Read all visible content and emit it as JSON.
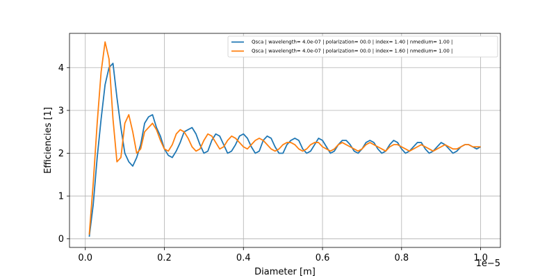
{
  "chart_data": {
    "type": "line",
    "title": "",
    "xlabel": "Diameter [m]",
    "ylabel": "Efficiencies [1]",
    "x_offset_label": "1e−5",
    "xlim": [
      -0.04,
      1.05
    ],
    "ylim": [
      -0.2,
      4.8
    ],
    "grid": true,
    "legend_position": "top-right",
    "xticks": [
      0.0,
      0.2,
      0.4,
      0.6,
      0.8,
      1.0
    ],
    "xtick_labels": [
      "0.0",
      "0.2",
      "0.4",
      "0.6",
      "0.8",
      "1.0"
    ],
    "yticks": [
      0,
      1,
      2,
      3,
      4
    ],
    "ytick_labels": [
      "0",
      "1",
      "2",
      "3",
      "4"
    ],
    "series": [
      {
        "name": "Qsca | wavelength= 4.0e-07 | polarization= 00.0 | index= 1.40 | nmedium= 1.00 |",
        "color": "#1f77b4",
        "x": [
          0.01,
          0.02,
          0.03,
          0.04,
          0.05,
          0.06,
          0.07,
          0.08,
          0.09,
          0.1,
          0.11,
          0.12,
          0.13,
          0.14,
          0.15,
          0.16,
          0.17,
          0.18,
          0.19,
          0.2,
          0.21,
          0.22,
          0.23,
          0.24,
          0.25,
          0.26,
          0.27,
          0.28,
          0.29,
          0.3,
          0.31,
          0.32,
          0.33,
          0.34,
          0.35,
          0.36,
          0.37,
          0.38,
          0.39,
          0.4,
          0.41,
          0.42,
          0.43,
          0.44,
          0.45,
          0.46,
          0.47,
          0.48,
          0.49,
          0.5,
          0.51,
          0.52,
          0.53,
          0.54,
          0.55,
          0.56,
          0.57,
          0.58,
          0.59,
          0.6,
          0.61,
          0.62,
          0.63,
          0.64,
          0.65,
          0.66,
          0.67,
          0.68,
          0.69,
          0.7,
          0.71,
          0.72,
          0.73,
          0.74,
          0.75,
          0.76,
          0.77,
          0.78,
          0.79,
          0.8,
          0.81,
          0.82,
          0.83,
          0.84,
          0.85,
          0.86,
          0.87,
          0.88,
          0.89,
          0.9,
          0.91,
          0.92,
          0.93,
          0.94,
          0.95,
          0.96,
          0.97,
          0.98,
          0.99,
          1.0
        ],
        "values": [
          0.05,
          0.8,
          1.9,
          2.8,
          3.6,
          4.0,
          4.1,
          3.3,
          2.6,
          2.0,
          1.8,
          1.7,
          1.9,
          2.2,
          2.7,
          2.85,
          2.9,
          2.6,
          2.4,
          2.1,
          1.95,
          1.9,
          2.05,
          2.25,
          2.5,
          2.55,
          2.6,
          2.45,
          2.2,
          2.0,
          2.05,
          2.3,
          2.45,
          2.4,
          2.2,
          2.0,
          2.05,
          2.2,
          2.4,
          2.45,
          2.35,
          2.15,
          2.0,
          2.05,
          2.3,
          2.4,
          2.35,
          2.15,
          2.0,
          2.0,
          2.2,
          2.3,
          2.35,
          2.3,
          2.1,
          2.0,
          2.05,
          2.2,
          2.35,
          2.3,
          2.15,
          2.0,
          2.05,
          2.2,
          2.3,
          2.3,
          2.2,
          2.05,
          2.0,
          2.1,
          2.25,
          2.3,
          2.25,
          2.1,
          2.0,
          2.05,
          2.2,
          2.3,
          2.25,
          2.1,
          2.0,
          2.05,
          2.15,
          2.25,
          2.25,
          2.1,
          2.0,
          2.05,
          2.15,
          2.25,
          2.2,
          2.1,
          2.0,
          2.05,
          2.15,
          2.2,
          2.2,
          2.15,
          2.1,
          2.15
        ]
      },
      {
        "name": "Qsca | wavelength= 4.0e-07 | polarization= 00.0 | index= 1.60 | nmedium= 1.00 |",
        "color": "#ff7f0e",
        "x": [
          0.01,
          0.02,
          0.03,
          0.04,
          0.05,
          0.06,
          0.07,
          0.08,
          0.09,
          0.1,
          0.11,
          0.12,
          0.13,
          0.14,
          0.15,
          0.16,
          0.17,
          0.18,
          0.19,
          0.2,
          0.21,
          0.22,
          0.23,
          0.24,
          0.25,
          0.26,
          0.27,
          0.28,
          0.29,
          0.3,
          0.31,
          0.32,
          0.33,
          0.34,
          0.35,
          0.36,
          0.37,
          0.38,
          0.39,
          0.4,
          0.41,
          0.42,
          0.43,
          0.44,
          0.45,
          0.46,
          0.47,
          0.48,
          0.49,
          0.5,
          0.51,
          0.52,
          0.53,
          0.54,
          0.55,
          0.56,
          0.57,
          0.58,
          0.59,
          0.6,
          0.61,
          0.62,
          0.63,
          0.64,
          0.65,
          0.66,
          0.67,
          0.68,
          0.69,
          0.7,
          0.71,
          0.72,
          0.73,
          0.74,
          0.75,
          0.76,
          0.77,
          0.78,
          0.79,
          0.8,
          0.81,
          0.82,
          0.83,
          0.84,
          0.85,
          0.86,
          0.87,
          0.88,
          0.89,
          0.9,
          0.91,
          0.92,
          0.93,
          0.94,
          0.95,
          0.96,
          0.97,
          0.98,
          0.99,
          1.0
        ],
        "values": [
          0.1,
          1.3,
          2.7,
          3.9,
          4.6,
          4.2,
          2.8,
          1.8,
          1.9,
          2.7,
          2.9,
          2.5,
          2.0,
          2.1,
          2.5,
          2.6,
          2.7,
          2.55,
          2.3,
          2.1,
          2.05,
          2.2,
          2.45,
          2.55,
          2.5,
          2.35,
          2.15,
          2.05,
          2.1,
          2.3,
          2.45,
          2.4,
          2.25,
          2.1,
          2.15,
          2.3,
          2.4,
          2.35,
          2.25,
          2.15,
          2.1,
          2.2,
          2.3,
          2.35,
          2.3,
          2.2,
          2.1,
          2.05,
          2.1,
          2.2,
          2.25,
          2.25,
          2.2,
          2.1,
          2.05,
          2.1,
          2.2,
          2.25,
          2.25,
          2.15,
          2.1,
          2.05,
          2.1,
          2.2,
          2.25,
          2.2,
          2.15,
          2.1,
          2.05,
          2.1,
          2.2,
          2.25,
          2.2,
          2.15,
          2.1,
          2.05,
          2.15,
          2.2,
          2.2,
          2.15,
          2.1,
          2.05,
          2.1,
          2.15,
          2.2,
          2.15,
          2.1,
          2.05,
          2.1,
          2.15,
          2.2,
          2.15,
          2.1,
          2.1,
          2.15,
          2.2,
          2.2,
          2.15,
          2.15,
          2.15
        ]
      }
    ]
  }
}
